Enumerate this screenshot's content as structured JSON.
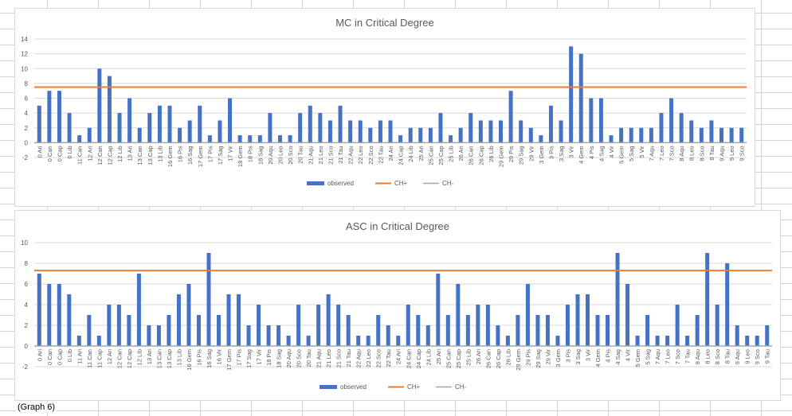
{
  "caption": "(Graph 6)",
  "colors": {
    "observed": "#4472C4",
    "ch_plus": "#ED7D31",
    "ch_minus": "#A5A5A5",
    "grid": "#D9D9D9",
    "text": "#595959"
  },
  "chart_data": [
    {
      "type": "bar",
      "title": "MC in Critical Degree",
      "xlabel": "",
      "ylabel": "",
      "ylim": [
        -2,
        14
      ],
      "yticks": [
        -2,
        0,
        2,
        4,
        6,
        8,
        10,
        12,
        14
      ],
      "grid": true,
      "legend_position": "bottom",
      "categories": [
        "0 Ari",
        "0 Can",
        "0 Cap",
        "0 Lib",
        "11 Can",
        "12 Ari",
        "12 Can",
        "12 Cap",
        "12 Lib",
        "13 Ari",
        "13 Can",
        "13 Cap",
        "13 Lib",
        "16 Gem",
        "16 Pis",
        "16 Sag",
        "17 Gem",
        "17 Pis",
        "17 Sag",
        "17 Vir",
        "18 Gem",
        "18 Pis",
        "18 Sag",
        "20 Aqu",
        "20 Leo",
        "20 Sco",
        "20 Tau",
        "21 Aqu",
        "21 Leo",
        "21 Sco",
        "21 Tau",
        "22 Aqu",
        "22 Leo",
        "22 Sco",
        "22 Tau",
        "24 Ari",
        "24 Cap",
        "24 Lib",
        "25 Ari",
        "25 Can",
        "25 Cap",
        "25 Lib",
        "26 Ari",
        "26 Can",
        "26 Cap",
        "26 Lib",
        "29 Gem",
        "29 Pis",
        "29 Sag",
        "29 Vir",
        "3 Gem",
        "3 Pis",
        "3 Sag",
        "3 Vir",
        "4 Gem",
        "4 Pis",
        "4 Sag",
        "4 Vir",
        "5 Gem",
        "5 Sag",
        "5 Vir",
        "7 Aqu",
        "7 Leo",
        "7 Sco",
        "8 Aqu",
        "8 Leo",
        "8 Sco",
        "8 Tau",
        "9 Aqu",
        "9 Leo",
        "9 Sco"
      ],
      "series": [
        {
          "name": "observed",
          "values": [
            5,
            7,
            7,
            4,
            1,
            2,
            10,
            9,
            4,
            6,
            2,
            4,
            5,
            5,
            2,
            3,
            5,
            1,
            3,
            6,
            1,
            1,
            1,
            4,
            1,
            1,
            4,
            5,
            4,
            3,
            5,
            3,
            3,
            2,
            3,
            3,
            1,
            2,
            2,
            2,
            4,
            1,
            2,
            4,
            3,
            3,
            3,
            7,
            3,
            2,
            1,
            5,
            3,
            13,
            12,
            6,
            6,
            1,
            2,
            2,
            2,
            2,
            4,
            6,
            4,
            3,
            2,
            3,
            2,
            2,
            2
          ]
        },
        {
          "name": "CH+",
          "constant": 7.5
        },
        {
          "name": "CH-",
          "constant": 0
        }
      ]
    },
    {
      "type": "bar",
      "title": "ASC in Critical Degree",
      "xlabel": "",
      "ylabel": "",
      "ylim": [
        -2,
        10
      ],
      "yticks": [
        -2,
        0,
        2,
        4,
        6,
        8,
        10
      ],
      "grid": true,
      "legend_position": "bottom",
      "categories": [
        "0 Ari",
        "0 Can",
        "0 Cap",
        "0 Lib",
        "11 Ari",
        "11 Can",
        "11 Cap",
        "12 Ari",
        "12 Can",
        "12 Cap",
        "12 Lib",
        "13 Ari",
        "13 Can",
        "13 Cap",
        "13 Lib",
        "16 Gem",
        "16 Pis",
        "16 Sag",
        "16 Vir",
        "17 Gem",
        "17 Pis",
        "17 Sag",
        "17 Vir",
        "18 Pis",
        "18 Sag",
        "20 Aqu",
        "20 Sco",
        "20 Tau",
        "21 Aqu",
        "21 Leo",
        "21 Sco",
        "21 Tau",
        "22 Aqu",
        "22 Leo",
        "22 Sco",
        "22 Tau",
        "24 Ari",
        "24 Can",
        "24 Cap",
        "24 Lib",
        "25 Ari",
        "25 Can",
        "25 Cap",
        "25 Lib",
        "26 Ari",
        "26 Can",
        "26 Cap",
        "26 Lib",
        "29 Gem",
        "29 Pis",
        "29 Sag",
        "29 Vir",
        "3 Gem",
        "3 Pis",
        "3 Sag",
        "3 Vir",
        "4 Gem",
        "4 Pis",
        "4 Sag",
        "4 Vir",
        "5 Gem",
        "5 Sag",
        "7 Aqu",
        "7 Leo",
        "7 Sco",
        "7 Tau",
        "8 Aqu",
        "8 Leo",
        "8 Sco",
        "8 Tau",
        "9 Aqu",
        "9 Leo",
        "9 Sco",
        "9 Tau"
      ],
      "series": [
        {
          "name": "observed",
          "values": [
            7,
            6,
            6,
            5,
            1,
            3,
            1,
            4,
            4,
            3,
            7,
            2,
            2,
            3,
            5,
            6,
            3,
            9,
            3,
            5,
            5,
            2,
            4,
            2,
            2,
            1,
            4,
            1,
            4,
            5,
            4,
            3,
            1,
            1,
            3,
            2,
            1,
            4,
            3,
            2,
            7,
            3,
            6,
            3,
            4,
            4,
            2,
            1,
            3,
            6,
            3,
            3,
            1,
            4,
            5,
            5,
            3,
            3,
            9,
            6,
            1,
            3,
            1,
            1,
            4,
            1,
            3,
            9,
            4,
            8,
            2,
            1,
            1,
            2
          ]
        },
        {
          "name": "CH+",
          "constant": 7.3
        },
        {
          "name": "CH-",
          "constant": 0
        }
      ]
    }
  ]
}
